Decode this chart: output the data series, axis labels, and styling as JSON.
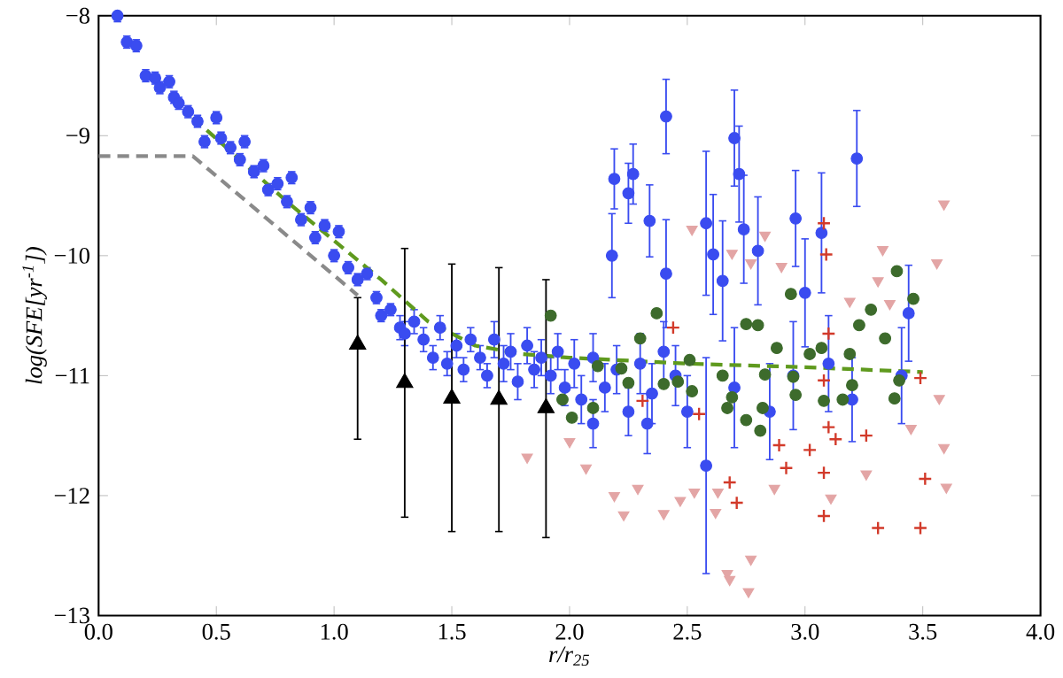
{
  "chart_data": {
    "type": "scatter",
    "xlabel": "r/r$_{25}$",
    "ylabel": "log(SFE[yr$^{-1}$])",
    "xlim": [
      0,
      4
    ],
    "ylim": [
      -13,
      -8
    ],
    "xticks": [
      {
        "value": 0,
        "label": "0.0"
      },
      {
        "value": 0.5,
        "label": "0.5"
      },
      {
        "value": 1,
        "label": "1.0"
      },
      {
        "value": 1.5,
        "label": "1.5"
      },
      {
        "value": 2,
        "label": "2.0"
      },
      {
        "value": 2.5,
        "label": "2.5"
      },
      {
        "value": 3,
        "label": "3.0"
      },
      {
        "value": 3.5,
        "label": "3.5"
      },
      {
        "value": 4,
        "label": "4.0"
      }
    ],
    "yticks": [
      {
        "value": -13,
        "label": "−13"
      },
      {
        "value": -12,
        "label": "−12"
      },
      {
        "value": -11,
        "label": "−11"
      },
      {
        "value": -10,
        "label": "−10"
      },
      {
        "value": -9,
        "label": "−9"
      },
      {
        "value": -8,
        "label": "−8"
      }
    ],
    "series": [
      {
        "marker": "circle",
        "color": "#3a4cf0",
        "x": [
          0.08,
          0.12,
          0.16,
          0.2,
          0.24,
          0.26,
          0.3,
          0.32,
          0.34,
          0.38,
          0.42,
          0.45,
          0.5,
          0.52,
          0.56,
          0.6,
          0.62,
          0.66,
          0.7,
          0.72,
          0.76,
          0.8,
          0.82,
          0.86,
          0.9,
          0.92,
          0.96,
          1.0,
          1.02,
          1.06,
          1.1,
          1.14,
          1.18,
          1.2,
          1.24,
          1.28,
          1.3,
          1.34,
          1.38,
          1.42,
          1.45,
          1.48,
          1.52,
          1.55,
          1.58,
          1.62,
          1.65,
          1.68,
          1.72,
          1.75,
          1.78,
          1.82,
          1.85,
          1.88,
          1.92,
          1.95,
          1.98,
          2.02,
          2.05,
          2.1,
          2.15,
          2.2,
          2.25,
          2.3,
          2.35,
          2.4,
          2.45,
          2.41,
          2.19,
          2.27,
          2.25,
          2.34,
          2.58,
          2.7,
          2.72,
          2.74,
          2.96,
          3.07,
          3.22,
          2.8,
          2.18,
          2.41,
          2.61,
          3.44,
          3.0,
          2.65,
          2.58,
          3.41,
          3.2,
          2.85,
          3.1,
          2.7,
          2.95,
          2.1,
          2.33,
          2.5
        ],
        "values": [
          -8.0,
          -8.22,
          -8.25,
          -8.5,
          -8.52,
          -8.6,
          -8.55,
          -8.68,
          -8.73,
          -8.8,
          -8.88,
          -9.05,
          -8.85,
          -9.02,
          -9.1,
          -9.2,
          -9.05,
          -9.3,
          -9.25,
          -9.45,
          -9.4,
          -9.55,
          -9.35,
          -9.7,
          -9.6,
          -9.85,
          -9.75,
          -10.0,
          -9.8,
          -10.1,
          -10.2,
          -10.15,
          -10.35,
          -10.5,
          -10.45,
          -10.6,
          -10.65,
          -10.55,
          -10.7,
          -10.85,
          -10.6,
          -10.9,
          -10.75,
          -10.95,
          -10.7,
          -10.85,
          -11.0,
          -10.7,
          -10.9,
          -10.8,
          -11.05,
          -10.75,
          -10.95,
          -10.85,
          -11.0,
          -10.8,
          -11.1,
          -10.9,
          -11.2,
          -10.85,
          -11.1,
          -10.95,
          -11.3,
          -10.9,
          -11.15,
          -10.8,
          -11.0,
          -8.84,
          -9.36,
          -9.32,
          -9.48,
          -9.71,
          -9.73,
          -9.02,
          -9.32,
          -9.78,
          -9.69,
          -9.81,
          -9.19,
          -9.96,
          -10.0,
          -10.15,
          -9.99,
          -10.48,
          -10.31,
          -10.21,
          -11.75,
          -11.0,
          -11.2,
          -11.3,
          -10.9,
          -11.1,
          -11.0,
          -11.4,
          -11.4,
          -11.3
        ],
        "errors": [
          0.05,
          0.05,
          0.05,
          0.05,
          0.05,
          0.05,
          0.05,
          0.05,
          0.05,
          0.05,
          0.05,
          0.05,
          0.05,
          0.05,
          0.05,
          0.05,
          0.05,
          0.05,
          0.05,
          0.05,
          0.05,
          0.05,
          0.05,
          0.05,
          0.05,
          0.05,
          0.05,
          0.05,
          0.05,
          0.05,
          0.05,
          0.05,
          0.05,
          0.05,
          0.05,
          0.1,
          0.1,
          0.1,
          0.1,
          0.1,
          0.1,
          0.1,
          0.1,
          0.1,
          0.1,
          0.1,
          0.1,
          0.15,
          0.15,
          0.15,
          0.15,
          0.15,
          0.15,
          0.15,
          0.15,
          0.15,
          0.15,
          0.2,
          0.2,
          0.2,
          0.2,
          0.2,
          0.2,
          0.25,
          0.25,
          0.25,
          0.25,
          0.31,
          0.25,
          0.25,
          0.25,
          0.3,
          0.6,
          0.4,
          0.4,
          0.45,
          0.4,
          0.5,
          0.4,
          0.45,
          0.35,
          0.45,
          0.5,
          0.4,
          0.45,
          0.5,
          0.9,
          0.4,
          0.35,
          0.4,
          0.4,
          0.5,
          0.45,
          0.2,
          0.25,
          0.3
        ]
      },
      {
        "marker": "circle",
        "color": "#3d6b2c",
        "x": [
          2.01,
          1.97,
          2.1,
          2.12,
          2.22,
          2.25,
          2.3,
          2.4,
          2.46,
          2.51,
          2.52,
          2.65,
          2.67,
          2.69,
          2.75,
          2.81,
          2.82,
          2.83,
          2.88,
          2.95,
          2.96,
          3.02,
          3.07,
          3.08,
          3.16,
          3.19,
          3.2,
          3.23,
          3.34,
          3.38,
          3.4,
          3.39,
          3.46,
          3.28,
          2.94,
          2.75,
          2.8,
          2.37,
          1.92
        ],
        "values": [
          -11.35,
          -11.2,
          -11.27,
          -10.92,
          -10.94,
          -11.06,
          -10.69,
          -11.07,
          -11.05,
          -10.87,
          -11.13,
          -11.0,
          -11.27,
          -11.18,
          -11.37,
          -11.46,
          -11.27,
          -10.99,
          -10.77,
          -11.01,
          -11.16,
          -10.82,
          -10.77,
          -11.21,
          -11.2,
          -10.82,
          -11.08,
          -10.58,
          -10.69,
          -11.19,
          -11.04,
          -10.13,
          -10.36,
          -10.45,
          -10.32,
          -10.57,
          -10.58,
          -10.48,
          -10.5
        ]
      },
      {
        "marker": "triangle_down",
        "color": "#e3a5a5",
        "x": [
          1.82,
          2.0,
          2.07,
          2.19,
          2.23,
          2.29,
          2.4,
          2.47,
          2.53,
          2.62,
          2.63,
          2.67,
          2.68,
          2.77,
          2.76,
          2.87,
          3.11,
          3.26,
          3.57,
          3.59,
          3.6,
          3.45,
          3.59,
          3.56,
          2.52,
          2.83,
          2.69,
          2.9,
          3.33,
          3.31,
          3.19,
          3.36,
          2.77
        ],
        "values": [
          -11.68,
          -11.55,
          -11.77,
          -12.0,
          -12.16,
          -11.94,
          -12.15,
          -12.04,
          -11.97,
          -12.14,
          -11.97,
          -12.65,
          -12.7,
          -12.53,
          -12.8,
          -11.94,
          -12.02,
          -11.82,
          -11.19,
          -11.6,
          -11.93,
          -11.44,
          -9.57,
          -10.06,
          -9.78,
          -9.83,
          -9.98,
          -10.09,
          -9.95,
          -10.21,
          -10.38,
          -10.4,
          -10.06
        ]
      },
      {
        "marker": "cross",
        "color": "#d23a2a",
        "x": [
          3.1,
          3.1,
          3.13,
          3.26,
          3.08,
          2.68,
          2.71,
          3.08,
          3.31,
          3.49,
          3.51,
          3.49,
          2.92,
          3.02,
          2.89,
          2.55,
          2.31,
          3.08,
          3.09,
          3.08,
          2.44
        ],
        "values": [
          -10.65,
          -11.43,
          -11.53,
          -11.5,
          -11.81,
          -11.89,
          -12.06,
          -12.17,
          -12.27,
          -12.27,
          -11.86,
          -11.02,
          -11.77,
          -11.62,
          -11.58,
          -11.32,
          -11.21,
          -11.04,
          -9.99,
          -9.73,
          -10.6
        ]
      },
      {
        "type": "line",
        "marker": "none",
        "line_style": "dashed",
        "color": "#8a8a8a",
        "x": [
          0,
          0.4,
          1.1
        ],
        "values": [
          -9.17,
          -9.17,
          -10.33
        ]
      },
      {
        "type": "line",
        "marker": "none",
        "line_style": "dashed",
        "color": "#5f9a1e",
        "x": [
          0.4,
          0.8,
          1.2,
          1.4,
          1.6,
          1.8,
          2.0,
          2.5,
          3.0,
          3.5
        ],
        "values": [
          -8.85,
          -9.55,
          -10.2,
          -10.55,
          -10.75,
          -10.82,
          -10.85,
          -10.9,
          -10.93,
          -10.97
        ]
      },
      {
        "marker": "triangle",
        "color": "#000000",
        "x": [
          1.1,
          1.3,
          1.5,
          1.7,
          1.9
        ],
        "values": [
          -10.74,
          -11.06,
          -11.19,
          -11.2,
          -11.27
        ],
        "errors": [
          [
            -11.53,
            -10.35
          ],
          [
            -12.18,
            -9.94
          ],
          [
            -12.3,
            -10.07
          ],
          [
            -12.3,
            -10.1
          ],
          [
            -12.35,
            -10.2
          ]
        ]
      }
    ]
  }
}
